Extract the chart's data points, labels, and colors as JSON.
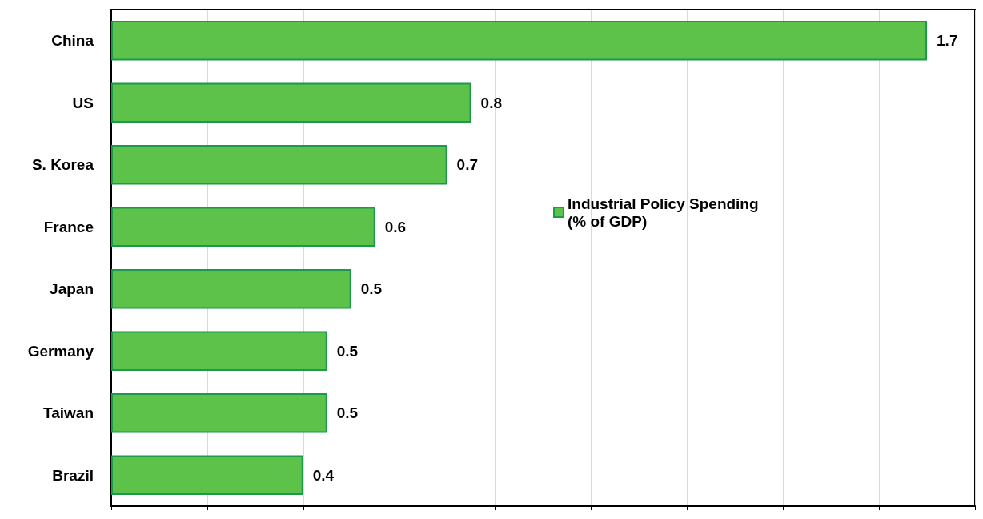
{
  "chart_data": {
    "type": "bar",
    "orientation": "horizontal",
    "categories": [
      "China",
      "US",
      "S. Korea",
      "France",
      "Japan",
      "Germany",
      "Taiwan",
      "Brazil"
    ],
    "series": [
      {
        "name": "Industrial Policy Spending\n(% of GDP)",
        "color": "#5cc24a",
        "values": [
          1.7,
          0.75,
          0.7,
          0.55,
          0.5,
          0.45,
          0.45,
          0.4
        ],
        "value_labels": [
          "1.7",
          "0.8",
          "0.7",
          "0.6",
          "0.5",
          "0.5",
          "0.5",
          "0.4"
        ]
      }
    ],
    "xlim": [
      0,
      1.8
    ],
    "xticks": [
      {
        "value": 0,
        "label": null
      },
      {
        "value": 0.2,
        "label": null
      },
      {
        "value": 0.4,
        "label": null
      },
      {
        "value": 0.6,
        "label": null
      },
      {
        "value": 0.8,
        "label": null
      },
      {
        "value": 1.0,
        "label": null
      },
      {
        "value": 1.2,
        "label": null
      },
      {
        "value": 1.4,
        "label": null
      },
      {
        "value": 1.6,
        "label": null
      },
      {
        "value": 1.8,
        "label": null
      }
    ],
    "grid": "x",
    "legend": "right",
    "tick_labels": "y"
  }
}
